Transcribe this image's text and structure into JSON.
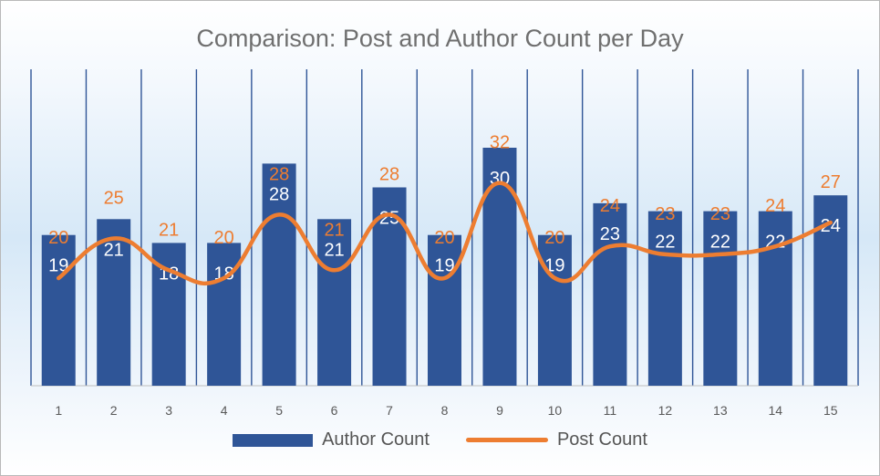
{
  "chart_data": {
    "type": "bar",
    "title": "Comparison: Post and Author Count per Day",
    "xlabel": "",
    "ylabel": "",
    "categories": [
      "1",
      "2",
      "3",
      "4",
      "5",
      "6",
      "7",
      "8",
      "9",
      "10",
      "11",
      "12",
      "13",
      "14",
      "15"
    ],
    "series": [
      {
        "name": "Author Count",
        "type": "bar",
        "color": "#2f5597",
        "values": [
          19,
          21,
          18,
          18,
          28,
          21,
          25,
          19,
          30,
          19,
          23,
          22,
          22,
          22,
          24
        ]
      },
      {
        "name": "Post Count",
        "type": "line",
        "smooth": true,
        "color": "#ed7d31",
        "values": [
          20,
          25,
          21,
          20,
          28,
          21,
          28,
          20,
          32,
          20,
          24,
          23,
          23,
          24,
          27
        ]
      }
    ],
    "ylim": [
      0,
      40
    ],
    "grid": "vertical lines between categories",
    "legend": "bottom-center",
    "data_labels": true
  }
}
